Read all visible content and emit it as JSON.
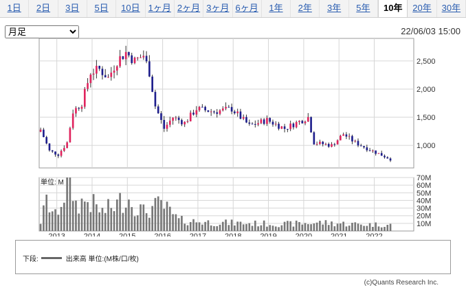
{
  "tabs": [
    {
      "label": "1日",
      "active": false
    },
    {
      "label": "2日",
      "active": false
    },
    {
      "label": "3日",
      "active": false
    },
    {
      "label": "5日",
      "active": false
    },
    {
      "label": "10日",
      "active": false
    },
    {
      "label": "1ヶ月",
      "active": false
    },
    {
      "label": "2ヶ月",
      "active": false
    },
    {
      "label": "3ヶ月",
      "active": false
    },
    {
      "label": "6ヶ月",
      "active": false
    },
    {
      "label": "1年",
      "active": false
    },
    {
      "label": "2年",
      "active": false
    },
    {
      "label": "3年",
      "active": false
    },
    {
      "label": "5年",
      "active": false
    },
    {
      "label": "10年",
      "active": true
    },
    {
      "label": "20年",
      "active": false
    },
    {
      "label": "30年",
      "active": false
    }
  ],
  "period_select": {
    "value": "月足"
  },
  "timestamp": "22/06/03 15:00",
  "volume_unit_label": "単位: M",
  "legend": {
    "prefix": "下段:",
    "item": "出来高 単位:(M株/口/枚)"
  },
  "copyright": "(c)Quants Research Inc.",
  "colors": {
    "up": "#e0245e",
    "down": "#1e1e8c",
    "volume": "#777777",
    "grid": "#d6d6d6"
  },
  "chart_data": {
    "type": "candlestick",
    "interval": "monthly",
    "x_tick_labels": [
      "2013",
      "2014",
      "2015",
      "2016",
      "2017",
      "2018",
      "2019",
      "2020",
      "2021",
      "2022"
    ],
    "price_axis": {
      "ticks": [
        1000,
        1500,
        2000,
        2500
      ],
      "tick_labels": [
        "1,000",
        "1,500",
        "2,000",
        "2,500"
      ],
      "range": [
        600,
        2900
      ]
    },
    "volume_axis": {
      "ticks": [
        10,
        20,
        30,
        40,
        50,
        60,
        70
      ],
      "tick_labels": [
        "10M",
        "20M",
        "30M",
        "40M",
        "50M",
        "60M",
        "70M"
      ],
      "range": [
        0,
        70
      ]
    },
    "close_anchors": [
      {
        "date": "2012-07",
        "close": 1280
      },
      {
        "date": "2012-10",
        "close": 900
      },
      {
        "date": "2013-01",
        "close": 840
      },
      {
        "date": "2013-04",
        "close": 1050
      },
      {
        "date": "2013-06",
        "close": 1600
      },
      {
        "date": "2013-09",
        "close": 1750
      },
      {
        "date": "2013-12",
        "close": 2300
      },
      {
        "date": "2014-03",
        "close": 2350
      },
      {
        "date": "2014-06",
        "close": 2200
      },
      {
        "date": "2014-09",
        "close": 2500
      },
      {
        "date": "2014-12",
        "close": 2650
      },
      {
        "date": "2015-03",
        "close": 2500
      },
      {
        "date": "2015-06",
        "close": 2600
      },
      {
        "date": "2015-08",
        "close": 2300
      },
      {
        "date": "2015-10",
        "close": 1700
      },
      {
        "date": "2016-01",
        "close": 1300
      },
      {
        "date": "2016-04",
        "close": 1500
      },
      {
        "date": "2016-08",
        "close": 1400
      },
      {
        "date": "2016-12",
        "close": 1650
      },
      {
        "date": "2017-06",
        "close": 1600
      },
      {
        "date": "2017-12",
        "close": 1650
      },
      {
        "date": "2018-06",
        "close": 1350
      },
      {
        "date": "2018-12",
        "close": 1450
      },
      {
        "date": "2019-06",
        "close": 1300
      },
      {
        "date": "2019-12",
        "close": 1450
      },
      {
        "date": "2020-02",
        "close": 1500
      },
      {
        "date": "2020-04",
        "close": 1050
      },
      {
        "date": "2020-10",
        "close": 1000
      },
      {
        "date": "2021-02",
        "close": 1200
      },
      {
        "date": "2021-06",
        "close": 1050
      },
      {
        "date": "2021-12",
        "close": 900
      },
      {
        "date": "2022-06",
        "close": 760
      }
    ],
    "volume_anchors": [
      {
        "date": "2012-07",
        "volume": 12
      },
      {
        "date": "2012-09",
        "volume": 38
      },
      {
        "date": "2012-12",
        "volume": 20
      },
      {
        "date": "2013-05",
        "volume": 68
      },
      {
        "date": "2013-07",
        "volume": 35
      },
      {
        "date": "2013-11",
        "volume": 40
      },
      {
        "date": "2014-04",
        "volume": 25
      },
      {
        "date": "2014-09",
        "volume": 35
      },
      {
        "date": "2014-12",
        "volume": 45
      },
      {
        "date": "2015-06",
        "volume": 25
      },
      {
        "date": "2015-12",
        "volume": 35
      },
      {
        "date": "2016-06",
        "volume": 14
      },
      {
        "date": "2017-06",
        "volume": 11
      },
      {
        "date": "2018-06",
        "volume": 10
      },
      {
        "date": "2019-06",
        "volume": 9
      },
      {
        "date": "2020-06",
        "volume": 11
      },
      {
        "date": "2021-06",
        "volume": 9
      },
      {
        "date": "2022-06",
        "volume": 8
      }
    ]
  }
}
